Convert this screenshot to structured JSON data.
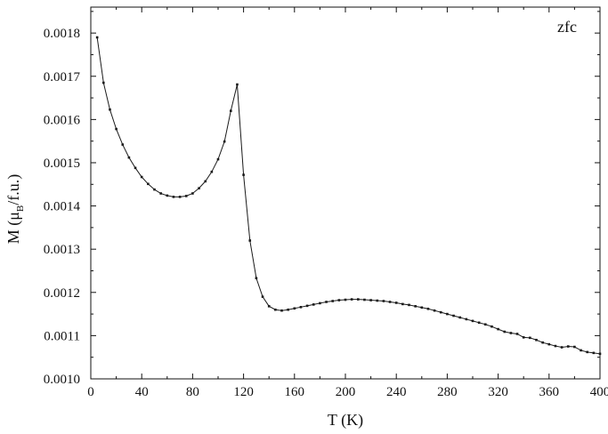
{
  "chart_data": {
    "type": "line",
    "annotation": "zfc",
    "xlabel": "T (K)",
    "ylabel": {
      "prefix": "M (",
      "mu": "μ",
      "sub": "B",
      "suffix": "/f.u.)"
    },
    "xlim": [
      0,
      400
    ],
    "ylim": [
      0.001,
      0.00186
    ],
    "xticks": [
      0,
      40,
      80,
      120,
      160,
      200,
      240,
      280,
      320,
      360,
      400
    ],
    "xtick_labels": [
      "0",
      "40",
      "80",
      "120",
      "160",
      "200",
      "240",
      "280",
      "320",
      "360",
      "400"
    ],
    "yticks": [
      0.001,
      0.0011,
      0.0012,
      0.0013,
      0.0014,
      0.0015,
      0.0016,
      0.0017,
      0.0018
    ],
    "ytick_labels": [
      "0.0010",
      "0.0011",
      "0.0012",
      "0.0013",
      "0.0014",
      "0.0015",
      "0.0016",
      "0.0017",
      "0.0018"
    ],
    "grid": false,
    "line_color": "#1a1a1a",
    "series": [
      {
        "x": [
          5,
          10,
          15,
          20,
          25,
          30,
          35,
          40,
          45,
          50,
          55,
          60,
          65,
          70,
          75,
          80,
          85,
          90,
          95,
          100,
          105,
          110,
          115,
          120,
          125,
          130,
          135,
          140,
          145,
          150,
          155,
          160,
          165,
          170,
          175,
          180,
          185,
          190,
          195,
          200,
          205,
          210,
          215,
          220,
          225,
          230,
          235,
          240,
          245,
          250,
          255,
          260,
          265,
          270,
          275,
          280,
          285,
          290,
          295,
          300,
          305,
          310,
          315,
          320,
          325,
          330,
          335,
          340,
          345,
          350,
          355,
          360,
          365,
          370,
          375,
          380,
          385,
          390,
          395,
          400
        ],
        "y": [
          0.00179,
          0.001685,
          0.001623,
          0.001578,
          0.001542,
          0.001512,
          0.001488,
          0.001467,
          0.001451,
          0.001438,
          0.001429,
          0.001424,
          0.001421,
          0.001421,
          0.001423,
          0.001429,
          0.001441,
          0.001457,
          0.001479,
          0.001508,
          0.001549,
          0.00162,
          0.001681,
          0.001472,
          0.00132,
          0.001233,
          0.00119,
          0.001168,
          0.00116,
          0.001158,
          0.00116,
          0.001163,
          0.001166,
          0.001169,
          0.001172,
          0.001175,
          0.001178,
          0.00118,
          0.001182,
          0.001183,
          0.001184,
          0.001184,
          0.001183,
          0.001182,
          0.001181,
          0.00118,
          0.001178,
          0.001176,
          0.001173,
          0.001171,
          0.001168,
          0.001165,
          0.001162,
          0.001158,
          0.001154,
          0.00115,
          0.001146,
          0.001142,
          0.001138,
          0.001134,
          0.00113,
          0.001126,
          0.001121,
          0.001115,
          0.001109,
          0.001106,
          0.001104,
          0.001096,
          0.001095,
          0.00109,
          0.001084,
          0.00108,
          0.001076,
          0.001073,
          0.001075,
          0.001074,
          0.001066,
          0.001062,
          0.00106,
          0.001058
        ]
      }
    ]
  }
}
